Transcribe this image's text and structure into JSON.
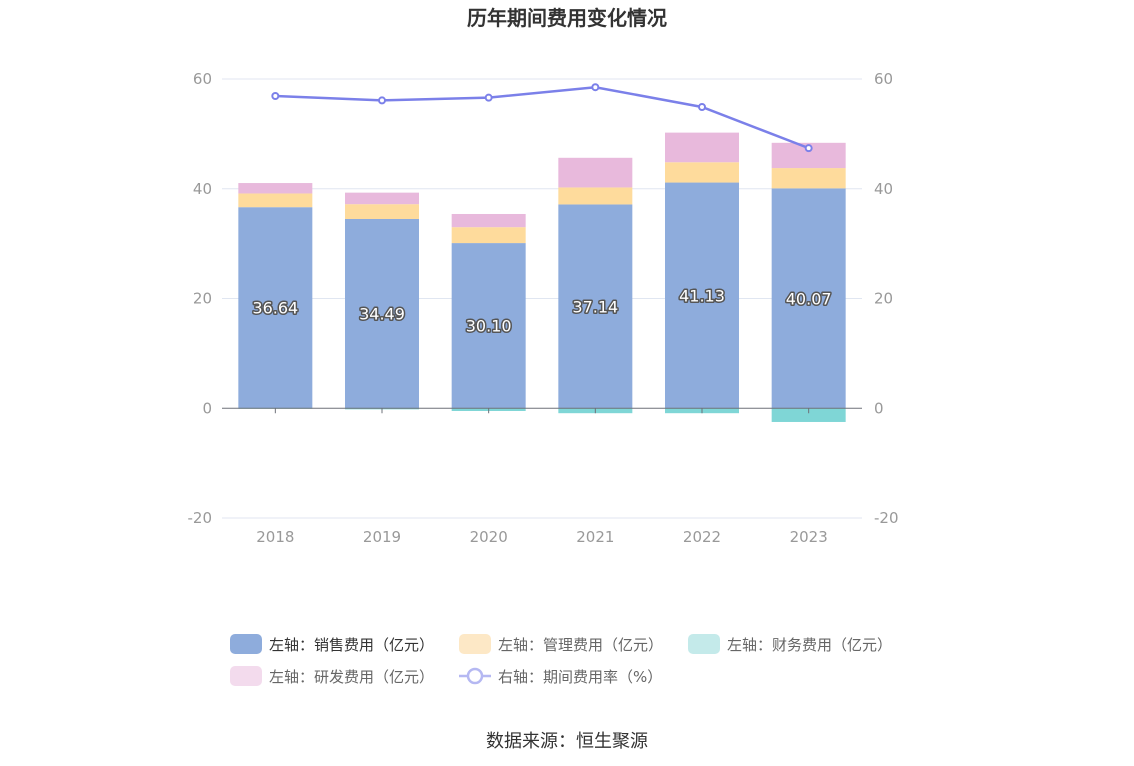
{
  "source_label": "数据来源：恒生聚源",
  "colors": {
    "sales": "#8eacdc",
    "admin": "#fedb9c",
    "finance": "#7fd6d6",
    "rd": "#e8b9dc",
    "rate": "#7b80e9",
    "axis": "#999999",
    "grid": "#e0e6f1"
  },
  "chart_data": {
    "type": "bar",
    "title": "历年期间费用变化情况",
    "categories": [
      "2018",
      "2019",
      "2020",
      "2021",
      "2022",
      "2023"
    ],
    "ylim_left": [
      -20,
      60
    ],
    "ylim_right": [
      -20,
      60
    ],
    "yticks": [
      -20,
      0,
      20,
      40,
      60
    ],
    "grid": true,
    "legend_position": "bottom",
    "series": [
      {
        "name": "左轴：销售费用（亿元）",
        "axis": "left",
        "type": "bar",
        "stack": "total",
        "values": [
          36.64,
          34.49,
          30.1,
          37.14,
          41.13,
          40.07
        ],
        "labels": [
          "36.64",
          "34.49",
          "30.10",
          "37.14",
          "41.13",
          "40.07"
        ]
      },
      {
        "name": "左轴：管理费用（亿元）",
        "axis": "left",
        "type": "bar",
        "stack": "total",
        "values": [
          2.5,
          2.7,
          2.9,
          3.1,
          3.7,
          3.7
        ]
      },
      {
        "name": "左轴：财务费用（亿元）",
        "axis": "left",
        "type": "bar",
        "stack": "total",
        "values": [
          -0.1,
          -0.2,
          -0.5,
          -0.9,
          -0.9,
          -2.5
        ]
      },
      {
        "name": "左轴：研发费用（亿元）",
        "axis": "left",
        "type": "bar",
        "stack": "total",
        "values": [
          1.9,
          2.1,
          2.4,
          5.4,
          5.4,
          4.6
        ]
      },
      {
        "name": "右轴：期间费用率（%）",
        "axis": "right",
        "type": "line",
        "values": [
          56.9,
          56.1,
          56.6,
          58.5,
          54.9,
          47.4
        ]
      }
    ]
  }
}
